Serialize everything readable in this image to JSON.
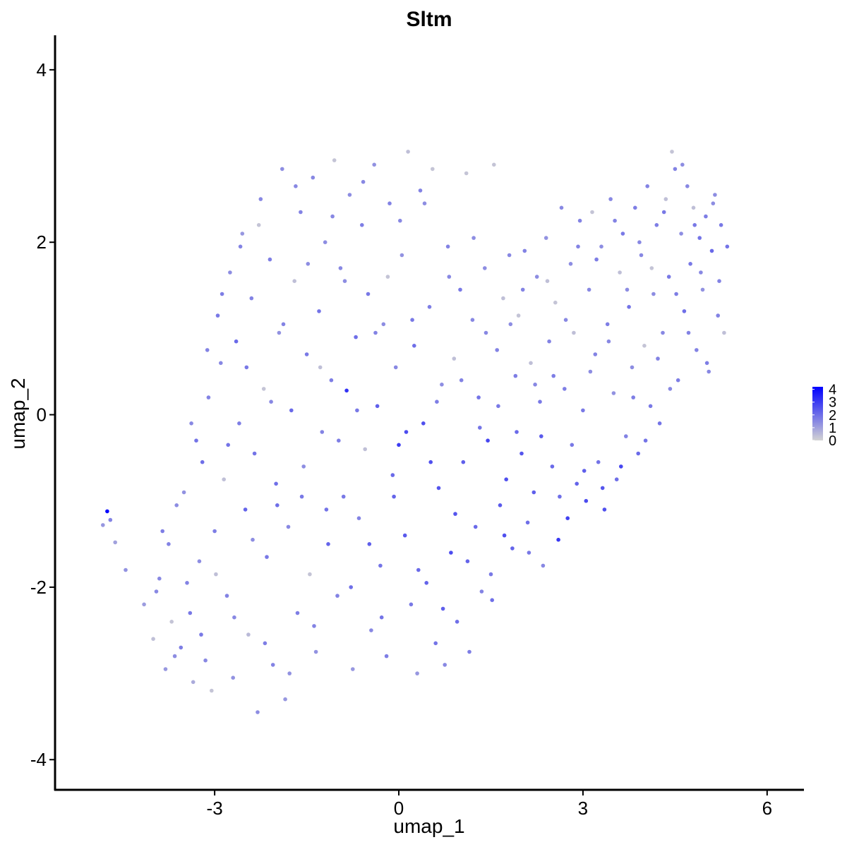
{
  "chart_data": {
    "type": "scatter",
    "title": "Sltm",
    "xlabel": "umap_1",
    "ylabel": "umap_2",
    "xlim": [
      -5.6,
      6.6
    ],
    "ylim": [
      -4.35,
      4.4
    ],
    "x_ticks": [
      -3,
      0,
      3,
      6
    ],
    "y_ticks": [
      -4,
      -2,
      0,
      2,
      4
    ],
    "x_tick_labels": [
      "-3",
      "0",
      "3",
      "6"
    ],
    "y_tick_labels": [
      "-4",
      "-2",
      "0",
      "2",
      "4"
    ],
    "grid": false,
    "color_scale": {
      "low_color": "#d3d3d3",
      "high_color": "#0000ff",
      "min": 0,
      "max": 4.2,
      "ticks": [
        0,
        1,
        2,
        3,
        4
      ],
      "tick_labels": [
        "0",
        "1",
        "2",
        "3",
        "4"
      ],
      "legend_position": "right"
    },
    "points": [
      [
        -4.75,
        -1.12,
        4.1
      ],
      [
        -4.82,
        -1.28,
        1.2
      ],
      [
        -4.7,
        -1.22,
        1.6
      ],
      [
        -4.62,
        -1.48,
        1.0
      ],
      [
        -4.45,
        -1.8,
        1.3
      ],
      [
        -4.15,
        -2.2,
        1.1
      ],
      [
        -4.0,
        -2.6,
        0.4
      ],
      [
        -3.9,
        -1.9,
        1.5
      ],
      [
        -3.8,
        -2.95,
        1.2
      ],
      [
        -3.75,
        -1.5,
        1.6
      ],
      [
        -3.7,
        -2.4,
        0.3
      ],
      [
        -3.62,
        -1.05,
        1.4
      ],
      [
        -3.55,
        -2.7,
        1.7
      ],
      [
        -3.5,
        -0.9,
        1.3
      ],
      [
        -3.4,
        -2.3,
        1.8
      ],
      [
        -3.35,
        -3.1,
        0.8
      ],
      [
        -3.3,
        -0.3,
        1.9
      ],
      [
        -3.25,
        -1.7,
        1.4
      ],
      [
        -3.2,
        -0.55,
        2.0
      ],
      [
        -3.15,
        -2.85,
        1.5
      ],
      [
        -3.1,
        0.2,
        1.6
      ],
      [
        -3.05,
        -3.2,
        0.3
      ],
      [
        -3.0,
        -1.35,
        1.7
      ],
      [
        -2.95,
        1.15,
        1.8
      ],
      [
        -2.9,
        0.6,
        1.5
      ],
      [
        -2.85,
        -0.75,
        0.4
      ],
      [
        -2.8,
        -2.1,
        1.6
      ],
      [
        -2.75,
        1.65,
        1.4
      ],
      [
        -2.7,
        -3.05,
        1.3
      ],
      [
        -2.65,
        0.85,
        2.1
      ],
      [
        -2.6,
        -0.1,
        1.7
      ],
      [
        -2.55,
        2.1,
        1.2
      ],
      [
        -2.5,
        -1.1,
        2.2
      ],
      [
        -2.45,
        -2.55,
        0.5
      ],
      [
        -2.4,
        1.35,
        1.6
      ],
      [
        -2.35,
        -0.45,
        1.9
      ],
      [
        -2.3,
        -3.45,
        1.4
      ],
      [
        -2.25,
        2.5,
        1.5
      ],
      [
        -2.2,
        0.3,
        0.3
      ],
      [
        -2.15,
        -1.65,
        1.8
      ],
      [
        -2.1,
        1.8,
        1.7
      ],
      [
        -2.05,
        -2.9,
        1.6
      ],
      [
        -2.0,
        -0.8,
        2.0
      ],
      [
        -1.95,
        0.95,
        1.3
      ],
      [
        -1.9,
        2.85,
        1.4
      ],
      [
        -1.85,
        -3.3,
        1.2
      ],
      [
        -1.8,
        -1.3,
        1.5
      ],
      [
        -1.75,
        0.05,
        2.1
      ],
      [
        -1.7,
        1.55,
        0.4
      ],
      [
        -1.65,
        -2.3,
        1.7
      ],
      [
        -1.6,
        2.35,
        1.6
      ],
      [
        -1.55,
        -0.6,
        1.4
      ],
      [
        -1.5,
        0.7,
        1.8
      ],
      [
        -1.45,
        -1.85,
        0.3
      ],
      [
        -1.4,
        2.75,
        1.5
      ],
      [
        -1.35,
        -2.75,
        1.3
      ],
      [
        -1.3,
        1.2,
        1.9
      ],
      [
        -1.25,
        -0.2,
        1.6
      ],
      [
        -1.2,
        2.0,
        1.4
      ],
      [
        -1.15,
        -1.5,
        2.2
      ],
      [
        -1.1,
        0.4,
        1.7
      ],
      [
        -1.05,
        2.95,
        0.3
      ],
      [
        -1.0,
        -2.1,
        1.6
      ],
      [
        -0.95,
        1.7,
        1.5
      ],
      [
        -0.9,
        -0.95,
        1.8
      ],
      [
        -0.85,
        0.28,
        3.2
      ],
      [
        -0.8,
        2.55,
        1.4
      ],
      [
        -0.75,
        -2.95,
        1.2
      ],
      [
        -0.7,
        0.9,
        2.0
      ],
      [
        -0.65,
        -1.2,
        1.6
      ],
      [
        -0.6,
        2.2,
        1.7
      ],
      [
        -0.55,
        -0.4,
        0.4
      ],
      [
        -0.5,
        1.4,
        1.8
      ],
      [
        -0.45,
        -2.5,
        1.5
      ],
      [
        -0.4,
        2.9,
        1.3
      ],
      [
        -0.35,
        0.1,
        2.3
      ],
      [
        -0.3,
        -1.75,
        1.9
      ],
      [
        -0.25,
        1.05,
        1.4
      ],
      [
        -0.2,
        -2.8,
        1.7
      ],
      [
        -0.15,
        2.45,
        1.6
      ],
      [
        -0.1,
        -0.7,
        2.1
      ],
      [
        -0.05,
        0.55,
        1.5
      ],
      [
        0.0,
        -0.35,
        3.0
      ],
      [
        0.05,
        1.85,
        1.3
      ],
      [
        0.1,
        -1.4,
        2.4
      ],
      [
        0.15,
        3.05,
        0.4
      ],
      [
        0.2,
        -2.2,
        1.8
      ],
      [
        0.25,
        0.8,
        2.0
      ],
      [
        0.3,
        -3.0,
        1.2
      ],
      [
        0.35,
        2.6,
        1.6
      ],
      [
        0.4,
        -0.1,
        2.6
      ],
      [
        0.45,
        -1.95,
        2.2
      ],
      [
        0.5,
        1.25,
        1.7
      ],
      [
        0.55,
        2.85,
        0.3
      ],
      [
        0.6,
        -2.65,
        1.9
      ],
      [
        0.65,
        -0.85,
        2.5
      ],
      [
        0.7,
        0.35,
        1.4
      ],
      [
        0.75,
        -2.9,
        1.5
      ],
      [
        0.8,
        1.95,
        1.6
      ],
      [
        0.85,
        -1.6,
        2.7
      ],
      [
        0.9,
        0.65,
        0.4
      ],
      [
        0.95,
        -2.4,
        2.0
      ],
      [
        1.0,
        1.45,
        1.8
      ],
      [
        1.05,
        -0.55,
        2.3
      ],
      [
        1.1,
        2.8,
        0.3
      ],
      [
        1.15,
        -2.75,
        1.7
      ],
      [
        1.2,
        1.1,
        1.5
      ],
      [
        1.25,
        -1.3,
        2.1
      ],
      [
        1.3,
        0.2,
        1.9
      ],
      [
        1.35,
        -2.05,
        1.6
      ],
      [
        1.4,
        1.7,
        1.4
      ],
      [
        1.45,
        -0.3,
        2.8
      ],
      [
        1.5,
        -1.85,
        1.8
      ],
      [
        1.55,
        2.9,
        0.3
      ],
      [
        1.6,
        0.75,
        1.6
      ],
      [
        1.65,
        -1.05,
        2.4
      ],
      [
        1.7,
        1.35,
        0.4
      ],
      [
        1.75,
        -0.75,
        2.6
      ],
      [
        1.8,
        1.85,
        1.5
      ],
      [
        1.85,
        -1.55,
        2.2
      ],
      [
        1.9,
        0.45,
        1.7
      ],
      [
        1.95,
        1.15,
        0.3
      ],
      [
        2.0,
        -0.45,
        2.5
      ],
      [
        2.05,
        1.9,
        1.6
      ],
      [
        2.1,
        -1.25,
        2.0
      ],
      [
        2.15,
        0.6,
        0.4
      ],
      [
        2.2,
        -0.9,
        2.3
      ],
      [
        2.25,
        1.6,
        1.4
      ],
      [
        2.3,
        0.15,
        1.8
      ],
      [
        2.35,
        -1.75,
        1.5
      ],
      [
        2.4,
        2.05,
        1.3
      ],
      [
        2.45,
        0.85,
        1.6
      ],
      [
        2.5,
        -0.6,
        2.1
      ],
      [
        2.55,
        1.3,
        0.3
      ],
      [
        2.6,
        -1.45,
        3.1
      ],
      [
        2.65,
        2.4,
        1.5
      ],
      [
        2.7,
        0.3,
        1.7
      ],
      [
        2.75,
        -1.2,
        2.9
      ],
      [
        2.8,
        1.75,
        1.4
      ],
      [
        2.85,
        0.95,
        0.4
      ],
      [
        2.9,
        -0.8,
        2.2
      ],
      [
        2.95,
        2.25,
        1.6
      ],
      [
        3.0,
        0.05,
        1.8
      ],
      [
        3.05,
        -1.0,
        2.7
      ],
      [
        3.1,
        1.45,
        1.5
      ],
      [
        3.15,
        2.35,
        0.3
      ],
      [
        3.2,
        0.7,
        1.6
      ],
      [
        3.25,
        -0.55,
        1.9
      ],
      [
        3.3,
        1.95,
        1.4
      ],
      [
        3.35,
        -1.1,
        2.6
      ],
      [
        3.4,
        1.05,
        1.7
      ],
      [
        3.45,
        2.5,
        1.5
      ],
      [
        3.5,
        0.25,
        1.3
      ],
      [
        3.55,
        -0.75,
        2.0
      ],
      [
        3.6,
        1.65,
        0.4
      ],
      [
        3.65,
        2.1,
        1.8
      ],
      [
        3.7,
        -0.25,
        1.6
      ],
      [
        3.75,
        1.25,
        1.9
      ],
      [
        3.8,
        0.55,
        1.4
      ],
      [
        3.85,
        2.4,
        1.7
      ],
      [
        3.9,
        -0.45,
        2.1
      ],
      [
        3.95,
        1.85,
        1.5
      ],
      [
        4.0,
        0.8,
        0.3
      ],
      [
        4.05,
        2.65,
        1.6
      ],
      [
        4.1,
        0.1,
        1.8
      ],
      [
        4.15,
        1.4,
        1.4
      ],
      [
        4.2,
        2.2,
        1.7
      ],
      [
        4.25,
        -0.1,
        1.9
      ],
      [
        4.3,
        0.95,
        1.5
      ],
      [
        4.35,
        2.5,
        0.4
      ],
      [
        4.4,
        1.6,
        1.8
      ],
      [
        4.45,
        3.05,
        0.3
      ],
      [
        4.5,
        2.85,
        1.6
      ],
      [
        4.55,
        0.4,
        1.7
      ],
      [
        4.6,
        2.1,
        1.4
      ],
      [
        4.65,
        1.2,
        2.0
      ],
      [
        4.7,
        2.65,
        1.5
      ],
      [
        4.75,
        1.75,
        1.8
      ],
      [
        4.8,
        2.4,
        0.4
      ],
      [
        4.85,
        0.75,
        1.6
      ],
      [
        4.9,
        2.05,
        1.9
      ],
      [
        4.95,
        1.45,
        1.3
      ],
      [
        5.0,
        2.3,
        1.7
      ],
      [
        5.05,
        0.5,
        1.5
      ],
      [
        5.1,
        1.9,
        2.1
      ],
      [
        5.15,
        2.55,
        1.4
      ],
      [
        5.2,
        1.15,
        1.6
      ],
      [
        5.25,
        2.2,
        1.8
      ],
      [
        5.3,
        0.95,
        0.4
      ],
      [
        5.35,
        1.95,
        1.9
      ],
      [
        -3.95,
        -2.05,
        1.5
      ],
      [
        -3.85,
        -1.35,
        1.7
      ],
      [
        -3.65,
        -2.8,
        1.4
      ],
      [
        -3.45,
        -1.95,
        1.6
      ],
      [
        -3.38,
        -0.1,
        1.5
      ],
      [
        -3.22,
        -2.55,
        1.8
      ],
      [
        -3.12,
        0.75,
        1.6
      ],
      [
        -2.98,
        -1.85,
        0.4
      ],
      [
        -2.88,
        1.4,
        1.7
      ],
      [
        -2.78,
        -0.35,
        1.9
      ],
      [
        -2.68,
        -2.35,
        1.5
      ],
      [
        -2.58,
        1.95,
        1.6
      ],
      [
        -2.48,
        0.55,
        1.8
      ],
      [
        -2.38,
        -1.45,
        1.4
      ],
      [
        -2.28,
        2.2,
        0.3
      ],
      [
        -2.18,
        -2.65,
        1.7
      ],
      [
        -2.08,
        0.15,
        1.5
      ],
      [
        -1.98,
        -1.05,
        2.0
      ],
      [
        -1.88,
        1.05,
        1.6
      ],
      [
        -1.78,
        -3.0,
        1.3
      ],
      [
        -1.68,
        2.65,
        1.5
      ],
      [
        -1.58,
        -0.95,
        1.8
      ],
      [
        -1.48,
        1.75,
        1.4
      ],
      [
        -1.38,
        -2.45,
        1.6
      ],
      [
        -1.28,
        0.55,
        0.4
      ],
      [
        -1.18,
        -1.1,
        1.9
      ],
      [
        -1.08,
        2.3,
        1.5
      ],
      [
        -0.98,
        -0.3,
        1.7
      ],
      [
        -0.88,
        1.55,
        1.4
      ],
      [
        -0.78,
        -2.0,
        2.0
      ],
      [
        -0.68,
        0.05,
        1.8
      ],
      [
        -0.58,
        2.7,
        1.5
      ],
      [
        -0.48,
        -1.5,
        2.3
      ],
      [
        -0.38,
        0.95,
        1.6
      ],
      [
        -0.28,
        -2.35,
        1.9
      ],
      [
        -0.18,
        1.6,
        0.3
      ],
      [
        -0.08,
        -0.95,
        2.2
      ],
      [
        0.02,
        2.25,
        1.5
      ],
      [
        0.12,
        -0.2,
        2.7
      ],
      [
        0.22,
        1.1,
        1.8
      ],
      [
        0.32,
        -1.8,
        2.1
      ],
      [
        0.42,
        2.45,
        1.4
      ],
      [
        0.52,
        -0.55,
        2.6
      ],
      [
        0.62,
        0.15,
        1.7
      ],
      [
        0.72,
        -2.25,
        2.3
      ],
      [
        0.82,
        1.6,
        1.5
      ],
      [
        0.92,
        -1.15,
        2.5
      ],
      [
        1.02,
        0.4,
        1.6
      ],
      [
        1.12,
        -1.7,
        2.2
      ],
      [
        1.22,
        2.05,
        1.4
      ],
      [
        1.32,
        -0.15,
        1.9
      ],
      [
        1.42,
        0.95,
        1.5
      ],
      [
        1.52,
        -2.15,
        2.0
      ],
      [
        1.62,
        0.1,
        1.8
      ],
      [
        1.72,
        -1.4,
        2.6
      ],
      [
        1.82,
        1.05,
        1.4
      ],
      [
        1.92,
        -0.2,
        2.1
      ],
      [
        2.02,
        1.45,
        1.6
      ],
      [
        2.12,
        -1.6,
        1.8
      ],
      [
        2.22,
        0.35,
        1.5
      ],
      [
        2.32,
        -0.25,
        2.4
      ],
      [
        2.42,
        1.55,
        0.4
      ],
      [
        2.52,
        0.45,
        1.7
      ],
      [
        2.62,
        -0.95,
        2.0
      ],
      [
        2.72,
        1.1,
        1.5
      ],
      [
        2.82,
        -0.35,
        1.8
      ],
      [
        2.92,
        1.95,
        1.6
      ],
      [
        3.02,
        -0.65,
        2.3
      ],
      [
        3.12,
        0.5,
        1.4
      ],
      [
        3.22,
        1.8,
        1.7
      ],
      [
        3.32,
        -0.85,
        2.5
      ],
      [
        3.42,
        0.85,
        1.5
      ],
      [
        3.52,
        2.25,
        1.6
      ],
      [
        3.62,
        -0.6,
        2.8
      ],
      [
        3.72,
        1.45,
        1.4
      ],
      [
        3.82,
        0.2,
        1.7
      ],
      [
        3.92,
        2.0,
        1.5
      ],
      [
        4.02,
        -0.3,
        1.9
      ],
      [
        4.12,
        1.7,
        0.3
      ],
      [
        4.22,
        0.65,
        1.6
      ],
      [
        4.32,
        2.35,
        1.8
      ],
      [
        4.42,
        0.3,
        1.5
      ],
      [
        4.52,
        1.4,
        1.7
      ],
      [
        4.62,
        2.9,
        1.4
      ],
      [
        4.72,
        0.95,
        1.6
      ],
      [
        4.82,
        2.2,
        1.8
      ],
      [
        4.92,
        1.65,
        1.5
      ],
      [
        5.02,
        0.6,
        1.7
      ],
      [
        5.12,
        2.45,
        1.4
      ],
      [
        5.22,
        1.55,
        1.6
      ]
    ]
  }
}
